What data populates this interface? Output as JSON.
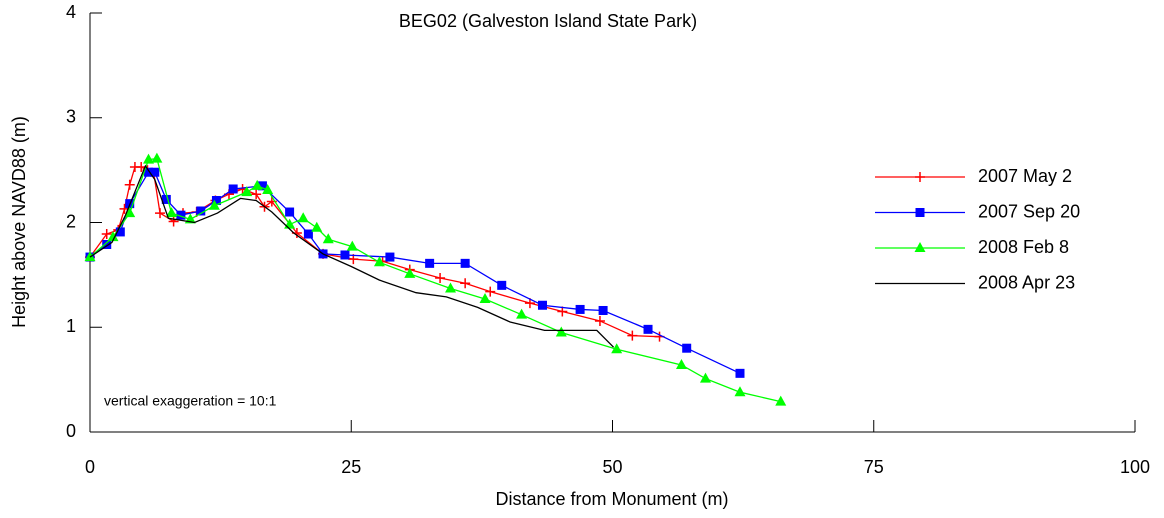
{
  "chart_data": {
    "type": "line",
    "title": "BEG02 (Galveston Island State Park)",
    "x_label": "Distance from Monument (m)",
    "y_label": "Height above NAVD88 (m)",
    "annotation": "vertical exaggeration = 10:1",
    "xlim": [
      0,
      100
    ],
    "xticks": [
      0,
      25,
      50,
      75,
      100
    ],
    "ylim": [
      0,
      4
    ],
    "yticks": [
      0,
      1,
      2,
      3,
      4
    ],
    "legend": "right",
    "series": [
      {
        "name": "2007 May 2",
        "color": "#ff0000",
        "marker": "plus",
        "x": [
          0,
          1.6,
          2.7,
          3.3,
          3.8,
          4.3,
          4.9,
          5.5,
          6.1,
          6.7,
          8.0,
          8.9,
          10.2,
          12.0,
          13.3,
          14.6,
          15.9,
          16.7,
          17.4,
          19.8,
          22.3,
          25.2,
          28.0,
          30.6,
          33.5,
          35.9,
          38.3,
          42.1,
          45.2,
          48.8,
          51.9,
          54.5
        ],
        "values": [
          1.67,
          1.89,
          1.93,
          2.13,
          2.36,
          2.53,
          2.53,
          2.5,
          2.47,
          2.09,
          2.01,
          2.09,
          2.1,
          2.21,
          2.27,
          2.32,
          2.27,
          2.15,
          2.2,
          1.9,
          1.7,
          1.65,
          1.63,
          1.55,
          1.47,
          1.42,
          1.34,
          1.23,
          1.15,
          1.06,
          0.92,
          0.91
        ]
      },
      {
        "name": "2007 Sep 20",
        "color": "#0000ff",
        "marker": "square",
        "x": [
          0,
          1.6,
          2.9,
          3.8,
          5.6,
          6.2,
          7.3,
          8.7,
          10.6,
          12.1,
          13.7,
          16.5,
          19.1,
          20.9,
          22.3,
          24.4,
          28.7,
          32.5,
          35.9,
          39.4,
          43.3,
          46.9,
          49.1,
          53.4,
          57.1,
          62.2
        ],
        "values": [
          1.67,
          1.79,
          1.91,
          2.18,
          2.48,
          2.48,
          2.22,
          2.07,
          2.11,
          2.21,
          2.32,
          2.35,
          2.1,
          1.89,
          1.7,
          1.69,
          1.67,
          1.61,
          1.61,
          1.4,
          1.21,
          1.17,
          1.16,
          0.98,
          0.8,
          0.56
        ]
      },
      {
        "name": "2008 Feb 8",
        "color": "#00ff00",
        "marker": "triangle",
        "x": [
          0,
          2.2,
          3.8,
          5.6,
          6.4,
          7.8,
          9.6,
          11.9,
          15.0,
          16.0,
          17.0,
          19.1,
          20.4,
          21.7,
          22.8,
          25.1,
          27.7,
          30.6,
          34.5,
          37.8,
          41.3,
          45.1,
          50.4,
          56.6,
          58.9,
          62.2,
          66.1
        ],
        "values": [
          1.67,
          1.86,
          2.09,
          2.6,
          2.61,
          2.09,
          2.03,
          2.16,
          2.29,
          2.35,
          2.31,
          1.98,
          2.04,
          1.95,
          1.84,
          1.77,
          1.62,
          1.51,
          1.37,
          1.27,
          1.12,
          0.95,
          0.79,
          0.64,
          0.51,
          0.38,
          0.29
        ]
      },
      {
        "name": "2008 Apr 23",
        "color": "#000000",
        "marker": "none",
        "x": [
          0,
          2.1,
          3.4,
          5.3,
          6.2,
          7.5,
          10.0,
          12.2,
          14.4,
          15.9,
          17.4,
          19.5,
          22.3,
          25.0,
          27.7,
          31.2,
          34.1,
          37.1,
          40.2,
          43.5,
          46.9,
          48.5,
          50.1
        ],
        "values": [
          1.67,
          1.81,
          2.07,
          2.54,
          2.41,
          2.04,
          2.0,
          2.09,
          2.23,
          2.21,
          2.1,
          1.9,
          1.7,
          1.58,
          1.45,
          1.33,
          1.29,
          1.19,
          1.05,
          0.97,
          0.97,
          0.97,
          0.81
        ]
      }
    ]
  }
}
